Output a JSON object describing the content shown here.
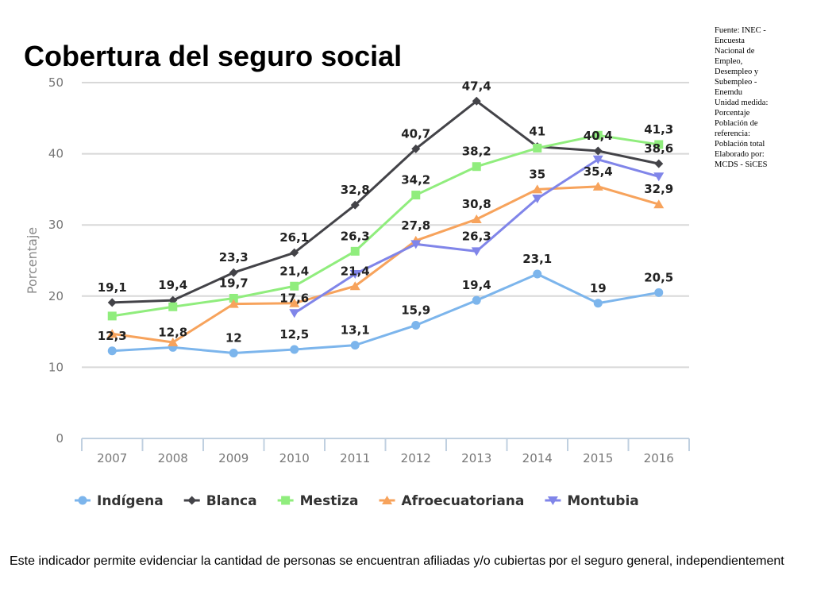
{
  "slide": {
    "title": "Cobertura del seguro social",
    "source_note": [
      "Fuente: INEC -",
      "Encuesta",
      "Nacional de",
      "Empleo,",
      "Desempleo y",
      "Subempleo -",
      "Enemdu",
      "Unidad medida:",
      "Porcentaje",
      "Población de",
      "referencia:",
      "Población total",
      "Elaborado por:",
      "MCDS - SiCES"
    ],
    "footer": "Este indicador permite evidenciar la cantidad de personas se encuentran afiliadas y/o cubiertas por el seguro general, independientement"
  },
  "chart_data": {
    "type": "line",
    "title": "",
    "xlabel": "",
    "ylabel": "Porcentaje",
    "ylim": [
      0,
      50
    ],
    "yticks": [
      "0",
      "10",
      "20",
      "30",
      "40",
      "50"
    ],
    "grid": "horizontal",
    "legend_position": "bottom",
    "categories": [
      "2007",
      "2008",
      "2009",
      "2010",
      "2011",
      "2012",
      "2013",
      "2014",
      "2015",
      "2016"
    ],
    "series": [
      {
        "name": "Indígena",
        "color": "#7cb5ec",
        "marker": "circle",
        "values": [
          12.3,
          12.8,
          12,
          12.5,
          13.1,
          15.9,
          19.4,
          23.1,
          19,
          20.5
        ],
        "labels": [
          "12,3",
          "12,8",
          "12",
          "12,5",
          "13,1",
          "15,9",
          "19,4",
          "23,1",
          "19",
          "20,5"
        ]
      },
      {
        "name": "Blanca",
        "color": "#434348",
        "marker": "diamond",
        "values": [
          19.1,
          19.4,
          23.3,
          26.1,
          32.8,
          40.7,
          47.4,
          41,
          40.4,
          38.6
        ],
        "labels": [
          "19,1",
          "19,4",
          "23,3",
          "26,1",
          "32,8",
          "40,7",
          "47,4",
          "41",
          "40,4",
          "38,6"
        ]
      },
      {
        "name": "Mestiza",
        "color": "#90ed7d",
        "marker": "square",
        "values": [
          17.2,
          18.5,
          19.7,
          21.4,
          26.3,
          34.2,
          38.2,
          40.8,
          42.6,
          41.3
        ],
        "labels": [
          "",
          "",
          "19,7",
          "21,4",
          "26,3",
          "34,2",
          "38,2",
          "",
          "",
          "41,3"
        ]
      },
      {
        "name": "Afroecuatoriana",
        "color": "#f7a35c",
        "marker": "triangle",
        "values": [
          14.7,
          13.5,
          18.9,
          19,
          21.4,
          27.8,
          30.8,
          35,
          35.4,
          32.9
        ],
        "labels": [
          "",
          "",
          "",
          "",
          "21,4",
          "27,8",
          "30,8",
          "35",
          "35,4",
          "32,9"
        ]
      },
      {
        "name": "Montubia",
        "color": "#8085e9",
        "marker": "triangle-down",
        "values": [
          null,
          null,
          null,
          17.6,
          23.1,
          27.3,
          26.3,
          33.7,
          39.2,
          36.8
        ],
        "labels": [
          "",
          "",
          "",
          "17,6",
          "",
          "",
          "26,3",
          "",
          "",
          ""
        ]
      }
    ]
  }
}
